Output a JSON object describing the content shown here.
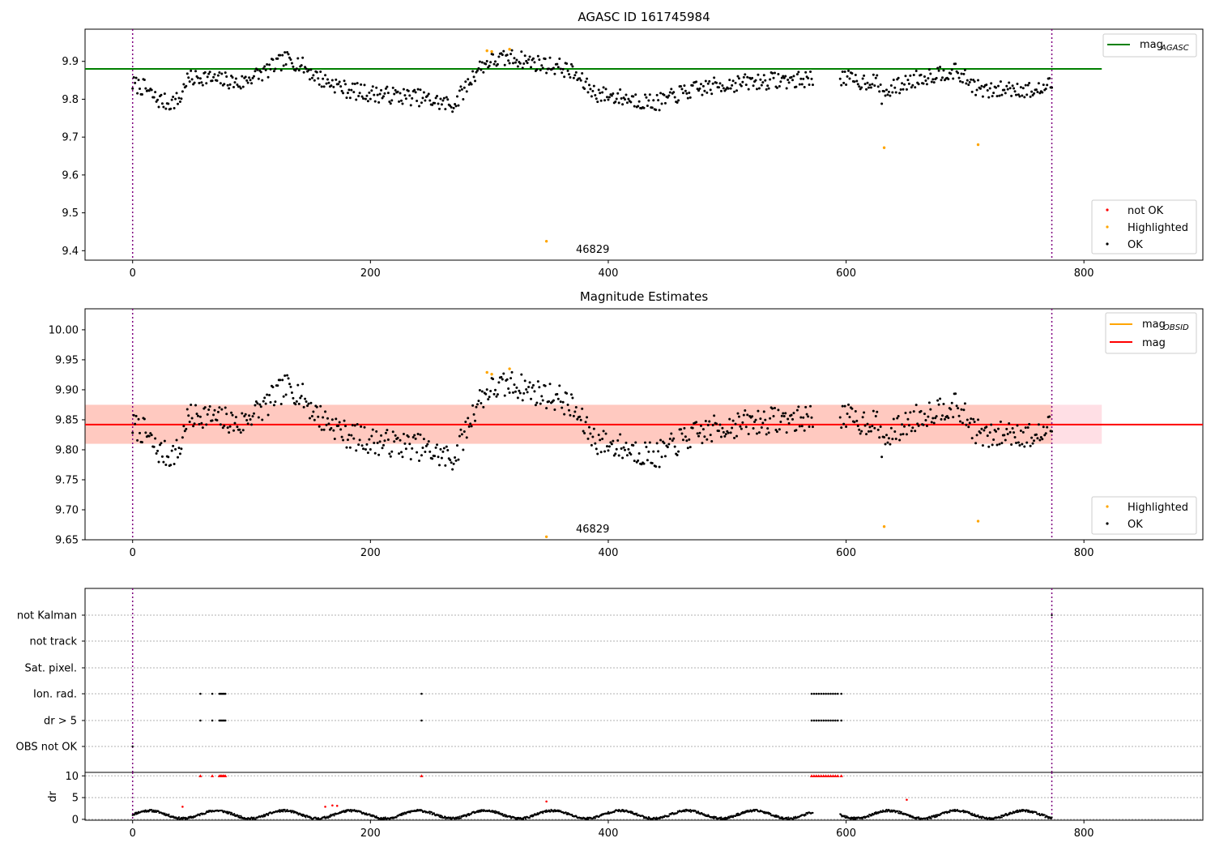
{
  "chart_data": [
    {
      "id": "agasc",
      "type": "scatter",
      "title": "AGASC ID 161745984",
      "xlim": [
        -40,
        900
      ],
      "ylim": [
        9.375,
        9.985
      ],
      "yticks": [
        9.4,
        9.5,
        9.6,
        9.7,
        9.8,
        9.9
      ],
      "ytick_labels": [
        "9.4",
        "9.5",
        "9.6",
        "9.7",
        "9.8",
        "9.9"
      ],
      "xticks": [
        0,
        200,
        400,
        600,
        800
      ],
      "xtick_labels": [
        "0",
        "200",
        "400",
        "600",
        "800"
      ],
      "vlines": [
        0,
        773
      ],
      "hline": {
        "label": "mag_AGASC",
        "y": 9.88,
        "x_end": 815,
        "color": "#008000"
      },
      "annotation": {
        "text": "46829",
        "x": 388,
        "y": 9.4
      },
      "legend_upper": [
        {
          "label_main": "mag",
          "label_sub": "AGASC",
          "color": "#008000"
        }
      ],
      "legend_lower": [
        {
          "label": "not OK",
          "color": "#ff0000"
        },
        {
          "label": "Highlighted",
          "color": "#ffa500"
        },
        {
          "label": "OK",
          "color": "#000000"
        }
      ],
      "highlighted_points": [
        [
          298,
          9.928
        ],
        [
          302,
          9.926
        ],
        [
          317,
          9.932
        ],
        [
          348,
          9.425
        ],
        [
          632,
          9.672
        ],
        [
          711,
          9.68
        ]
      ]
    },
    {
      "id": "mag",
      "type": "scatter",
      "title": "Magnitude Estimates",
      "xlim": [
        -40,
        900
      ],
      "ylim": [
        9.65,
        10.035
      ],
      "yticks": [
        9.65,
        9.7,
        9.75,
        9.8,
        9.85,
        9.9,
        9.95,
        10.0
      ],
      "ytick_labels": [
        "9.65",
        "9.70",
        "9.75",
        "9.80",
        "9.85",
        "9.90",
        "9.95",
        "10.00"
      ],
      "xticks": [
        0,
        200,
        400,
        600,
        800
      ],
      "xtick_labels": [
        "0",
        "200",
        "400",
        "600",
        "800"
      ],
      "vlines": [
        0,
        773
      ],
      "mag_line": {
        "y": 9.842,
        "color": "#ff0000"
      },
      "band": {
        "y_low": 9.81,
        "y_high": 9.875,
        "x_end": 815
      },
      "annotation": {
        "text": "46829",
        "x": 388,
        "y": 9.65
      },
      "legend_upper": [
        {
          "label_main": "mag",
          "label_sub": "OBSID",
          "color": "#ffa500"
        },
        {
          "label_main": "mag",
          "label_sub": "",
          "color": "#ff0000"
        }
      ],
      "legend_lower": [
        {
          "label": "Highlighted",
          "color": "#ffa500"
        },
        {
          "label": "OK",
          "color": "#000000"
        }
      ],
      "highlighted_points": [
        [
          298,
          9.929
        ],
        [
          302,
          9.926
        ],
        [
          317,
          9.935
        ],
        [
          348,
          9.655
        ],
        [
          632,
          9.672
        ],
        [
          711,
          9.681
        ]
      ]
    },
    {
      "id": "flags",
      "type": "scatter",
      "xlim": [
        -40,
        900
      ],
      "vlines": [
        0,
        773
      ],
      "categories": [
        "not Kalman",
        "not track",
        "Sat. pixel.",
        "Ion. rad.",
        "dr > 5",
        "OBS not OK"
      ],
      "flagged_x": [
        57,
        67,
        73,
        74,
        75,
        76,
        77,
        78,
        243,
        571,
        573,
        575,
        577,
        579,
        581,
        583,
        585,
        587,
        589,
        591,
        593,
        596
      ],
      "flagged_rows": [
        "Ion. rad.",
        "dr > 5"
      ]
    },
    {
      "id": "dr",
      "type": "scatter",
      "ylabel": "dr",
      "ylim": [
        -0.2,
        10.8
      ],
      "yticks": [
        0,
        5,
        10
      ],
      "ytick_labels": [
        "0",
        "5",
        "10"
      ],
      "xticks": [
        0,
        200,
        400,
        600,
        800
      ],
      "xtick_labels": [
        "0",
        "200",
        "400",
        "600",
        "800"
      ],
      "xlim": [
        -40,
        900
      ],
      "outliers": [
        [
          42,
          2.9
        ],
        [
          162,
          2.9
        ],
        [
          168,
          3.2
        ],
        [
          172,
          3.1
        ],
        [
          348,
          4.1
        ],
        [
          651,
          4.5
        ]
      ]
    }
  ]
}
